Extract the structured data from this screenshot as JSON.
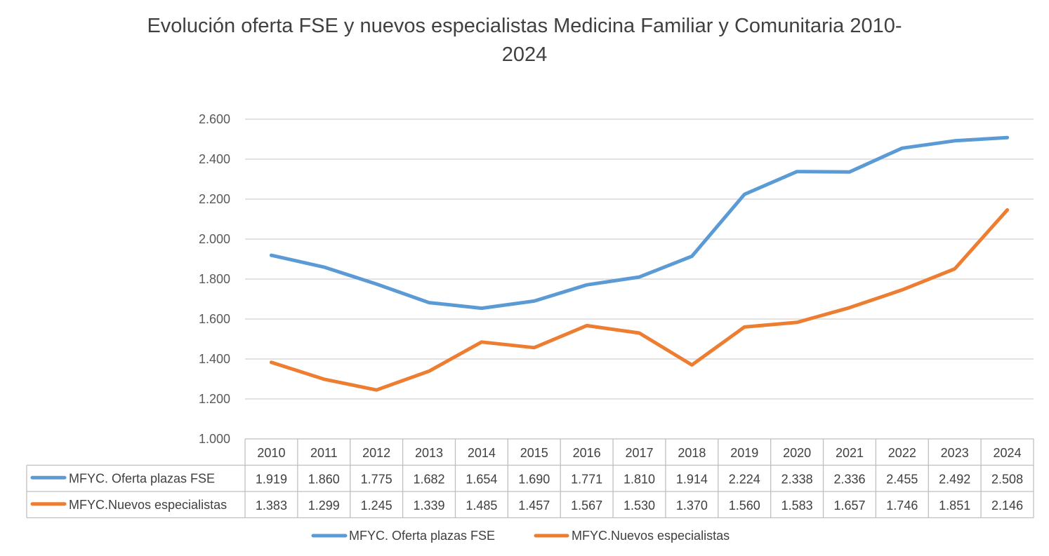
{
  "chart_data": {
    "type": "line",
    "title_line1": "Evolución oferta FSE y nuevos especialistas Medicina Familiar y Comunitaria 2010-",
    "title_line2": "2024",
    "categories": [
      "2010",
      "2011",
      "2012",
      "2013",
      "2014",
      "2015",
      "2016",
      "2017",
      "2018",
      "2019",
      "2020",
      "2021",
      "2022",
      "2023",
      "2024"
    ],
    "ylim": [
      1000,
      2600
    ],
    "yticks": [
      1000,
      1200,
      1400,
      1600,
      1800,
      2000,
      2200,
      2400,
      2600
    ],
    "ytick_labels": [
      "1.000",
      "1.200",
      "1.400",
      "1.600",
      "1.800",
      "2.000",
      "2.200",
      "2.400",
      "2.600"
    ],
    "grid": true,
    "legend_position": "bottom",
    "data_table": true,
    "series": [
      {
        "name": "MFYC. Oferta plazas FSE",
        "color": "#5b9bd5",
        "values": [
          1919,
          1860,
          1775,
          1682,
          1654,
          1690,
          1771,
          1810,
          1914,
          2224,
          2338,
          2336,
          2455,
          2492,
          2508
        ],
        "labels": [
          "1.919",
          "1.860",
          "1.775",
          "1.682",
          "1.654",
          "1.690",
          "1.771",
          "1.810",
          "1.914",
          "2.224",
          "2.338",
          "2.336",
          "2.455",
          "2.492",
          "2.508"
        ]
      },
      {
        "name": "MFYC.Nuevos especialistas",
        "color": "#ed7d31",
        "values": [
          1383,
          1299,
          1245,
          1339,
          1485,
          1457,
          1567,
          1530,
          1370,
          1560,
          1583,
          1657,
          1746,
          1851,
          2146
        ],
        "labels": [
          "1.383",
          "1.299",
          "1.245",
          "1.339",
          "1.485",
          "1.457",
          "1.567",
          "1.530",
          "1.370",
          "1.560",
          "1.583",
          "1.657",
          "1.746",
          "1.851",
          "2.146"
        ]
      }
    ]
  }
}
